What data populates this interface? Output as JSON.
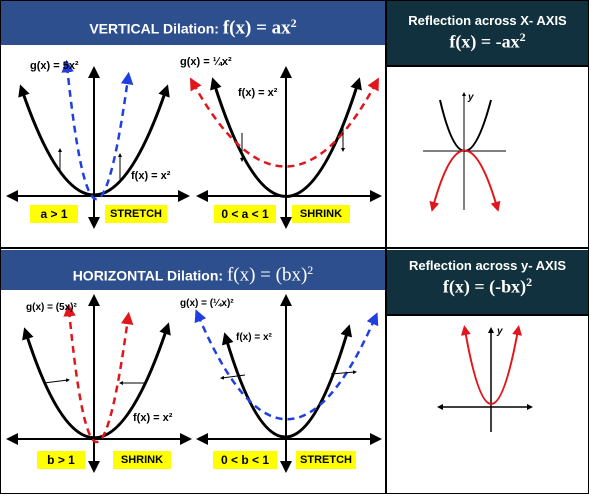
{
  "vertical": {
    "title_text": "VERTICAL Dilation: ",
    "title_formula": "f(x) = ax",
    "title_exp": "2",
    "stretch": {
      "g_label": "g(x) = 5x²",
      "f_label": "f(x) = x²",
      "condition": "a > 1",
      "word": "STRETCH"
    },
    "shrink": {
      "g_label": "g(x) = ¼x²",
      "f_label": "f(x) = x²",
      "condition": "0 < a < 1",
      "word": "SHRINK"
    }
  },
  "horizontal": {
    "title_text": "HORIZONTAL Dilation: ",
    "title_formula": "f(x) = (bx)",
    "title_exp": "2",
    "shrink": {
      "g_label": "g(x) = (5x)²",
      "f_label": "f(x) = x²",
      "condition": "b > 1",
      "word": "SHRINK"
    },
    "stretch": {
      "g_label": "g(x) = (¼x)²",
      "f_label": "f(x) = x²",
      "condition": "0 < b < 1",
      "word": "STRETCH"
    }
  },
  "reflect_x": {
    "title": "Reflection across X- AXIS",
    "formula": "f(x) = -ax",
    "exp": "2",
    "axis_label": "y"
  },
  "reflect_y": {
    "title": "Reflection across y- AXIS",
    "formula": "f(x) = (-bx)",
    "exp": "2",
    "axis_label": "y"
  },
  "colors": {
    "header_blue": "#2d4f8e",
    "header_dark": "#10313d",
    "blue_curve": "#1f3fe0",
    "red_curve": "#e0161c",
    "highlight": "#ffff00"
  }
}
